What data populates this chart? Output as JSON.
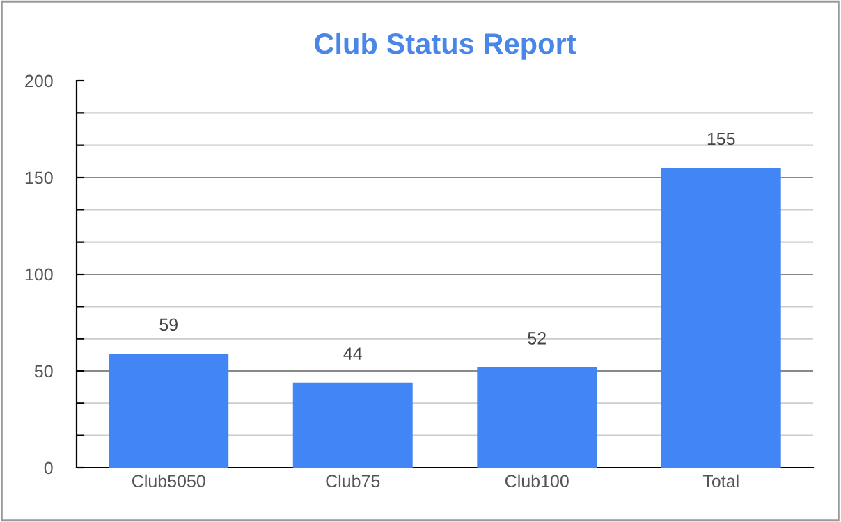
{
  "chart_data": {
    "type": "bar",
    "title": "Club Status Report",
    "categories": [
      "Club5050",
      "Club75",
      "Club100",
      "Total"
    ],
    "values": [
      59,
      44,
      52,
      155
    ],
    "color": "#4285f4",
    "ylim": [
      0,
      200
    ],
    "yticks": [
      0,
      {
        "value": 16.67,
        "label": null
      },
      {
        "value": 33.33,
        "label": null
      },
      50,
      {
        "value": 66.67,
        "label": null
      },
      {
        "value": 83.33,
        "label": null
      },
      100,
      {
        "value": 116.67,
        "label": null
      },
      {
        "value": 133.33,
        "label": null
      },
      150,
      {
        "value": 166.67,
        "label": null
      },
      {
        "value": 183.33,
        "label": null
      },
      200
    ],
    "grid": "y",
    "data_labels": true
  }
}
